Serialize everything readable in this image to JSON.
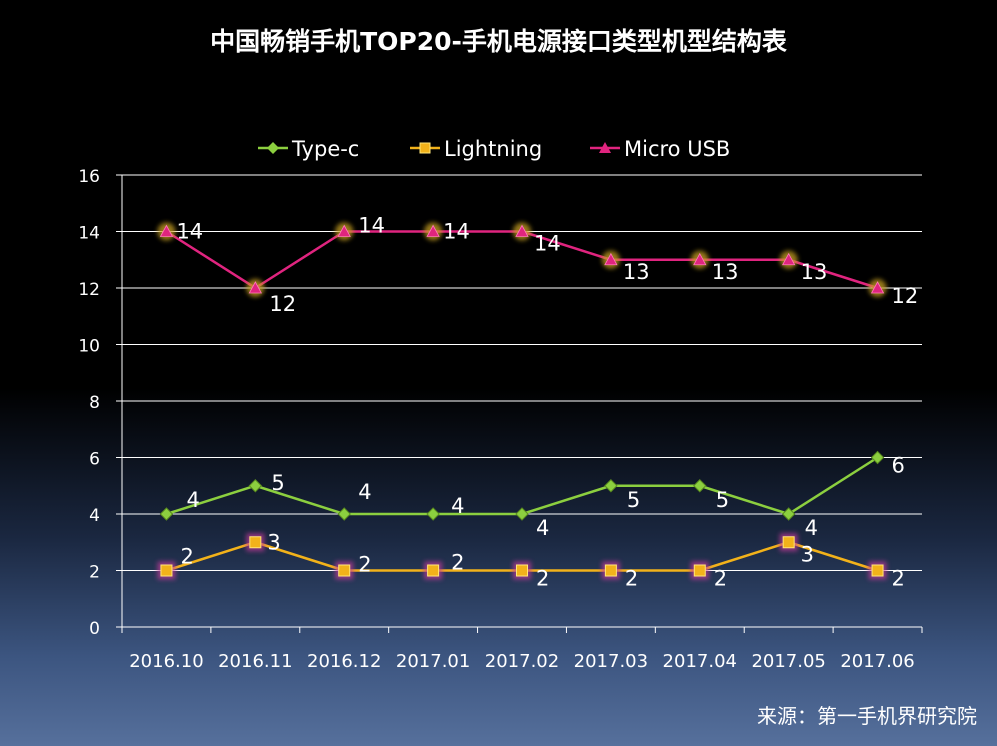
{
  "chart_data": {
    "type": "line",
    "title": "中国畅销手机TOP20-手机电源接口类型机型结构表",
    "categories": [
      "2016.10",
      "2016.11",
      "2016.12",
      "2017.01",
      "2017.02",
      "2017.03",
      "2017.04",
      "2017.05",
      "2017.06"
    ],
    "series": [
      {
        "name": "Type-c",
        "values": [
          4,
          5,
          4,
          4,
          4,
          5,
          5,
          4,
          6
        ],
        "color": "#8ccf3f",
        "marker": "diamond"
      },
      {
        "name": "Lightning",
        "values": [
          2,
          3,
          2,
          2,
          2,
          2,
          2,
          3,
          2
        ],
        "color": "#f2b21a",
        "marker": "square"
      },
      {
        "name": "Micro USB",
        "values": [
          14,
          12,
          14,
          14,
          14,
          13,
          13,
          13,
          12
        ],
        "color": "#e0247f",
        "marker": "triangle"
      }
    ],
    "ylim": [
      0,
      16
    ],
    "yticks": [
      0,
      2,
      4,
      6,
      8,
      10,
      12,
      14,
      16
    ],
    "grid": true,
    "legend": "top",
    "xlabel": "",
    "ylabel": ""
  },
  "source": "来源：第一手机界研究院"
}
